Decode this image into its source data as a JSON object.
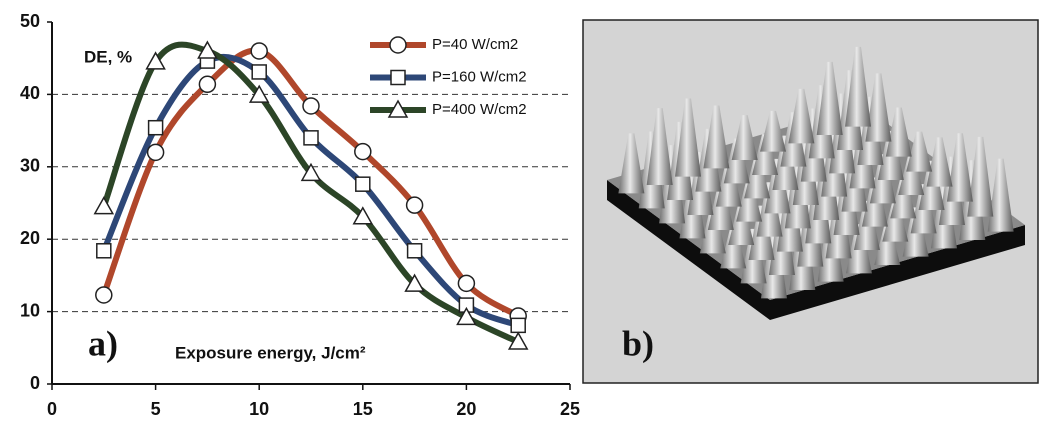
{
  "chart_data": {
    "type": "line",
    "y_annotation": "DE, %",
    "x_annotation": "Exposure energy, J/cm²",
    "panel_label": "a)",
    "x": [
      2.5,
      5,
      7.5,
      10,
      12.5,
      15,
      17.5,
      20,
      22.5
    ],
    "series": [
      {
        "name": "P=40 W/cm2",
        "color": "#b0472b",
        "marker": "circle",
        "values": [
          12.3,
          32.0,
          41.4,
          46.0,
          38.4,
          32.1,
          24.7,
          13.9,
          9.4
        ]
      },
      {
        "name": "P=160 W/cm2",
        "color": "#2d4777",
        "marker": "square",
        "values": [
          18.4,
          35.4,
          44.6,
          43.1,
          34.0,
          27.6,
          18.4,
          10.9,
          8.1
        ]
      },
      {
        "name": "P=400 W/cm2",
        "color": "#2c4527",
        "marker": "triangle",
        "values": [
          24.5,
          44.5,
          46.0,
          39.9,
          29.1,
          23.1,
          13.8,
          9.2,
          5.8
        ]
      }
    ],
    "xlim": [
      0,
      25
    ],
    "xticks": [
      0,
      5,
      10,
      15,
      20,
      25
    ],
    "ylim": [
      0,
      50
    ],
    "yticks": [
      0,
      10,
      20,
      30,
      40,
      50
    ],
    "grid": true,
    "legend": "top-right"
  },
  "image_panel": {
    "label": "b)"
  }
}
